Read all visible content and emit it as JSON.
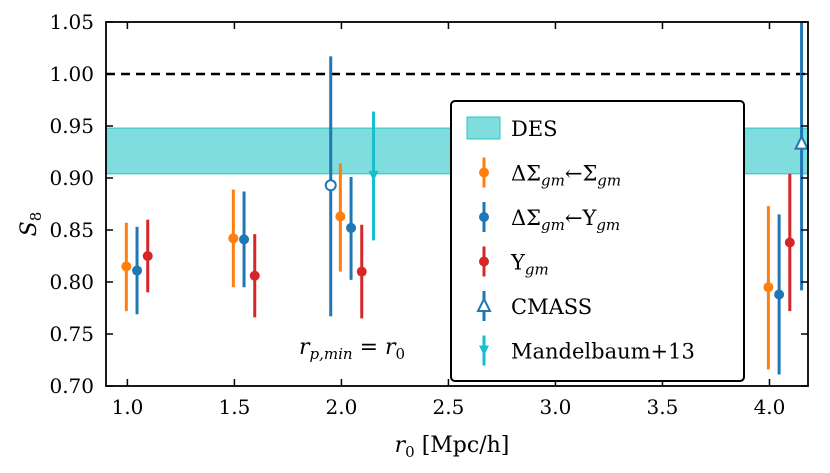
{
  "chart_data": {
    "type": "scatter",
    "title": "",
    "xlabel": "r₀ [Mpc/h]",
    "ylabel": "S₈",
    "xlim": [
      0.9,
      4.18
    ],
    "ylim": [
      0.7,
      1.05
    ],
    "xticks": [
      1.0,
      1.5,
      2.0,
      2.5,
      3.0,
      3.5,
      4.0
    ],
    "xtick_labels": [
      "1.0",
      "1.5",
      "2.0",
      "2.5",
      "3.0",
      "3.5",
      "4.0"
    ],
    "yticks": [
      0.7,
      0.75,
      0.8,
      0.85,
      0.9,
      0.95,
      1.0,
      1.05
    ],
    "ytick_labels": [
      "0.70",
      "0.75",
      "0.80",
      "0.85",
      "0.90",
      "0.95",
      "1.00",
      "1.05"
    ],
    "reference_line": {
      "y": 1.0,
      "style": "dashed",
      "color": "#000000"
    },
    "band": {
      "name": "DES",
      "ymin": 0.904,
      "ymax": 0.948,
      "color": "#7fdddd",
      "edge": "#2fc4c4"
    },
    "annotation": "r_p,min = r₀",
    "legend_position": "lower-right",
    "series": [
      {
        "name": "ΔΣgm←Σgm",
        "color": "#ff7f0e",
        "marker": "circle",
        "points": [
          {
            "x": 0.995,
            "y": 0.815,
            "ylo": 0.772,
            "yhi": 0.857
          },
          {
            "x": 1.495,
            "y": 0.842,
            "ylo": 0.795,
            "yhi": 0.889
          },
          {
            "x": 1.995,
            "y": 0.863,
            "ylo": 0.81,
            "yhi": 0.914
          },
          {
            "x": 3.995,
            "y": 0.795,
            "ylo": 0.716,
            "yhi": 0.873
          }
        ]
      },
      {
        "name": "ΔΣgm←Ygm",
        "color": "#1f77b4",
        "marker": "circle",
        "points": [
          {
            "x": 1.045,
            "y": 0.811,
            "ylo": 0.769,
            "yhi": 0.853
          },
          {
            "x": 1.545,
            "y": 0.841,
            "ylo": 0.795,
            "yhi": 0.887
          },
          {
            "x": 2.045,
            "y": 0.852,
            "ylo": 0.802,
            "yhi": 0.901
          },
          {
            "x": 4.045,
            "y": 0.788,
            "ylo": 0.711,
            "yhi": 0.865
          }
        ]
      },
      {
        "name": "Ygm",
        "color": "#d62728",
        "marker": "circle",
        "points": [
          {
            "x": 1.095,
            "y": 0.825,
            "ylo": 0.79,
            "yhi": 0.86
          },
          {
            "x": 1.595,
            "y": 0.806,
            "ylo": 0.766,
            "yhi": 0.846
          },
          {
            "x": 2.095,
            "y": 0.81,
            "ylo": 0.765,
            "yhi": 0.855
          },
          {
            "x": 4.095,
            "y": 0.838,
            "ylo": 0.772,
            "yhi": 0.904
          }
        ]
      },
      {
        "name": "CMASS",
        "color": "#1f77b4",
        "marker": "open-circle",
        "points": [
          {
            "x": 1.95,
            "y": 0.893,
            "ylo": 0.767,
            "yhi": 1.017
          }
        ]
      },
      {
        "name": "CMASS",
        "color": "#1f77b4",
        "marker": "open-triangle",
        "points": [
          {
            "x": 4.15,
            "y": 0.933,
            "ylo": 0.792,
            "yhi": 1.05
          }
        ]
      },
      {
        "name": "Mandelbaum+13",
        "color": "#17becf",
        "marker": "triangle-down",
        "points": [
          {
            "x": 2.15,
            "y": 0.902,
            "ylo": 0.84,
            "yhi": 0.964
          }
        ]
      }
    ],
    "legend": [
      {
        "label": "DES",
        "kind": "band",
        "color": "#7fdddd"
      },
      {
        "label_main": "ΔΣ",
        "sub1": "gm",
        "arrow": "←Σ",
        "sub2": "gm",
        "kind": "circle",
        "color": "#ff7f0e"
      },
      {
        "label_main": "ΔΣ",
        "sub1": "gm",
        "arrow": "←Y",
        "sub2": "gm",
        "kind": "circle",
        "color": "#1f77b4"
      },
      {
        "label_main": "Y",
        "sub1": "gm",
        "kind": "circle",
        "color": "#d62728"
      },
      {
        "label": "CMASS",
        "kind": "open-triangle",
        "color": "#1f77b4"
      },
      {
        "label": "Mandelbaum+13",
        "kind": "triangle-down",
        "color": "#17becf"
      }
    ]
  }
}
